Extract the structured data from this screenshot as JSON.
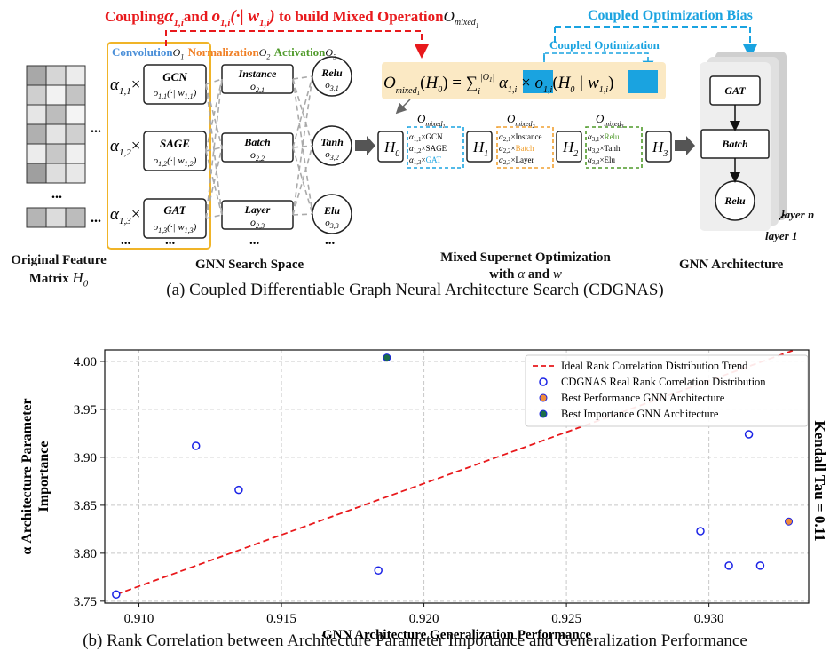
{
  "figure_a": {
    "top_banner": "Coupling α1,i and o1,i(·|w1,i) to build Mixed Operation Omixed1",
    "banner_coupling": "Coupling",
    "banner_and": "and",
    "banner_to_build": "to build Mixed Operation",
    "coupled_bias_label": "Coupled Optimization Bias",
    "coupled_opt_label": "Coupled Optimization",
    "search_space_headers": {
      "conv": "Convolution",
      "norm": "Normalization",
      "act": "Activation"
    },
    "conv_ops": [
      "GCN",
      "SAGE",
      "GAT"
    ],
    "norm_ops": [
      "Instance",
      "Batch",
      "Layer"
    ],
    "act_ops": [
      "Relu",
      "Tanh",
      "Elu"
    ],
    "mixed_eq": "Omixed1(H0) = Σi |O1| α1,i × o1,i(H0 | w1,i)",
    "h_labels": [
      "H0",
      "H1",
      "H2",
      "H3"
    ],
    "mixed_box1": [
      "α1,1×GCN",
      "α1,2×SAGE",
      "α1,3×GAT"
    ],
    "mixed_box2": [
      "α2,1×Instance",
      "α2,2×Batch",
      "α2,3×Layer"
    ],
    "mixed_box3": [
      "α3,1×Relu",
      "α3,2×Tanh",
      "α3,3×Elu"
    ],
    "arch_nodes": [
      "GAT",
      "Batch",
      "Relu"
    ],
    "layer_labels": [
      "layer n",
      "layer 1"
    ],
    "label_feature_matrix_1": "Original Feature",
    "label_feature_matrix_2": "Matrix H0",
    "label_search_space": "GNN Search Space",
    "label_mixed_supernet_1": "Mixed Supernet Optimization",
    "label_mixed_supernet_2": "with α and w",
    "label_gnn_arch": "GNN Architecture",
    "caption": "(a) Coupled Differentiable Graph Neural Architecture Search (CDGNAS)",
    "colors": {
      "red": "#e8191c",
      "blue": "#1aa3e0",
      "orange": "#f0a030",
      "green": "#4f9a2a",
      "eq_bg": "#fbe9c4"
    }
  },
  "figure_b": {
    "caption": "(b) Rank Correlation between Architecture Parameter Importance and  Generalization Performance",
    "side_label": "Kendall Tau = 0.11"
  },
  "chart_data": {
    "type": "scatter",
    "title": "",
    "xlabel": "GNN Architecture Generalization Performance",
    "ylabel": "α Architecture Parameter Importance",
    "xlim": [
      0.9088,
      0.9335
    ],
    "ylim": [
      3.748,
      4.012
    ],
    "xticks": [
      "0.910",
      "0.915",
      "0.920",
      "0.925",
      "0.930"
    ],
    "yticks": [
      "3.75",
      "3.80",
      "3.85",
      "3.90",
      "3.95",
      "4.00"
    ],
    "grid": true,
    "legend_position": "top-right",
    "series": [
      {
        "name": "Ideal Rank Correlation Distribution Trend",
        "kind": "dashed-line",
        "color": "#e8191c",
        "points": [
          [
            0.9092,
            3.757
          ],
          [
            0.933,
            4.012
          ]
        ]
      },
      {
        "name": "CDGNAS Real Rank Correlation Distribution",
        "kind": "hollow-circle",
        "color": "#1a22e6",
        "points": [
          [
            0.9092,
            3.757
          ],
          [
            0.912,
            3.912
          ],
          [
            0.9135,
            3.866
          ],
          [
            0.9184,
            3.782
          ],
          [
            0.9297,
            3.823
          ],
          [
            0.9307,
            3.787
          ],
          [
            0.9314,
            3.924
          ],
          [
            0.9318,
            3.787
          ]
        ]
      },
      {
        "name": "Best Performance GNN Architecture",
        "kind": "filled-circle",
        "color": "#f08c3a",
        "points": [
          [
            0.9328,
            3.833
          ]
        ]
      },
      {
        "name": "Best Importance GNN Architecture",
        "kind": "filled-circle",
        "color": "#1b6e4a",
        "points": [
          [
            0.9187,
            4.004
          ]
        ]
      }
    ]
  }
}
